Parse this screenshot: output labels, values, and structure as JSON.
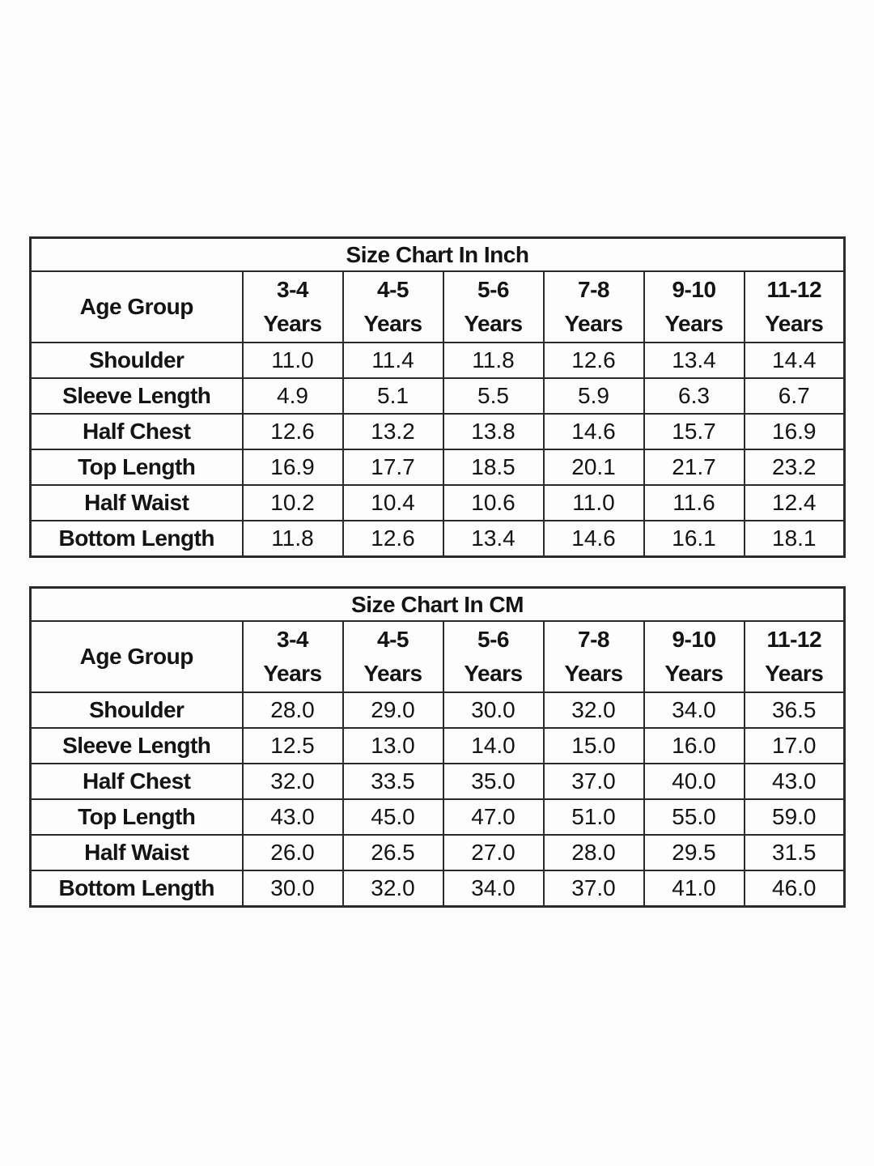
{
  "page": {
    "background_color": "#fcfcfc",
    "border_color": "#2b2b2b",
    "text_color": "#141414"
  },
  "tables": [
    {
      "title": "Size Chart In Inch",
      "corner_header": "Age Group",
      "age_columns": [
        {
          "range": "3-4",
          "unit": "Years"
        },
        {
          "range": "4-5",
          "unit": "Years"
        },
        {
          "range": "5-6",
          "unit": "Years"
        },
        {
          "range": "7-8",
          "unit": "Years"
        },
        {
          "range": "9-10",
          "unit": "Years"
        },
        {
          "range": "11-12",
          "unit": "Years"
        }
      ],
      "rows": [
        {
          "label": "Shoulder",
          "values": [
            "11.0",
            "11.4",
            "11.8",
            "12.6",
            "13.4",
            "14.4"
          ]
        },
        {
          "label": "Sleeve Length",
          "values": [
            "4.9",
            "5.1",
            "5.5",
            "5.9",
            "6.3",
            "6.7"
          ]
        },
        {
          "label": "Half Chest",
          "values": [
            "12.6",
            "13.2",
            "13.8",
            "14.6",
            "15.7",
            "16.9"
          ]
        },
        {
          "label": "Top Length",
          "values": [
            "16.9",
            "17.7",
            "18.5",
            "20.1",
            "21.7",
            "23.2"
          ]
        },
        {
          "label": "Half Waist",
          "values": [
            "10.2",
            "10.4",
            "10.6",
            "11.0",
            "11.6",
            "12.4"
          ]
        },
        {
          "label": "Bottom Length",
          "values": [
            "11.8",
            "12.6",
            "13.4",
            "14.6",
            "16.1",
            "18.1"
          ]
        }
      ]
    },
    {
      "title": "Size Chart In CM",
      "corner_header": "Age Group",
      "age_columns": [
        {
          "range": "3-4",
          "unit": "Years"
        },
        {
          "range": "4-5",
          "unit": "Years"
        },
        {
          "range": "5-6",
          "unit": "Years"
        },
        {
          "range": "7-8",
          "unit": "Years"
        },
        {
          "range": "9-10",
          "unit": "Years"
        },
        {
          "range": "11-12",
          "unit": "Years"
        }
      ],
      "rows": [
        {
          "label": "Shoulder",
          "values": [
            "28.0",
            "29.0",
            "30.0",
            "32.0",
            "34.0",
            "36.5"
          ]
        },
        {
          "label": "Sleeve Length",
          "values": [
            "12.5",
            "13.0",
            "14.0",
            "15.0",
            "16.0",
            "17.0"
          ]
        },
        {
          "label": "Half Chest",
          "values": [
            "32.0",
            "33.5",
            "35.0",
            "37.0",
            "40.0",
            "43.0"
          ]
        },
        {
          "label": "Top Length",
          "values": [
            "43.0",
            "45.0",
            "47.0",
            "51.0",
            "55.0",
            "59.0"
          ]
        },
        {
          "label": "Half Waist",
          "values": [
            "26.0",
            "26.5",
            "27.0",
            "28.0",
            "29.5",
            "31.5"
          ]
        },
        {
          "label": "Bottom Length",
          "values": [
            "30.0",
            "32.0",
            "34.0",
            "37.0",
            "41.0",
            "46.0"
          ]
        }
      ]
    }
  ]
}
